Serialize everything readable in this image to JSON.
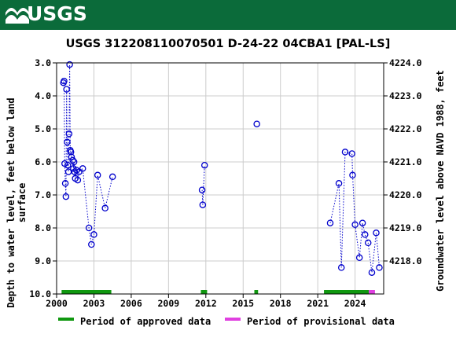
{
  "header": {
    "logo_text": "USGS",
    "banner_color": "#0b6b3a"
  },
  "chart_data": {
    "type": "scatter",
    "title": "USGS 312208110070501 D-24-22 04CBA1 [PAL-LS]",
    "ylabel_left_line1": "Depth to water level, feet below land",
    "ylabel_left_line2": "surface",
    "ylabel_right": "Groundwater level above NAVD 1988, feet",
    "xlim": [
      2000.0,
      2026.3
    ],
    "ylim_left": [
      3.0,
      10.0
    ],
    "ylim_right": [
      4224.0,
      4217.0
    ],
    "y_inverted": true,
    "x_ticks": [
      "2000",
      "2003",
      "2006",
      "2009",
      "2012",
      "2015",
      "2018",
      "2021",
      "2024"
    ],
    "x_tick_values": [
      2000,
      2003,
      2006,
      2009,
      2012,
      2015,
      2018,
      2021,
      2024
    ],
    "y_ticks_left": [
      "3.0",
      "4.0",
      "5.0",
      "6.0",
      "7.0",
      "8.0",
      "9.0",
      "10.0"
    ],
    "y_tick_values_left": [
      3,
      4,
      5,
      6,
      7,
      8,
      9,
      10
    ],
    "y_ticks_right": [
      "4224.0",
      "4223.0",
      "4222.0",
      "4221.0",
      "4220.0",
      "4219.0",
      "4218.0"
    ],
    "y_tick_values_right": [
      4224,
      4223,
      4222,
      4221,
      4220,
      4219,
      4218
    ],
    "grid": true,
    "marker_color": "#0000cc",
    "series": [
      {
        "points": [
          [
            2000.55,
            3.6
          ],
          [
            2000.6,
            3.55
          ],
          [
            2000.65,
            6.05
          ],
          [
            2000.7,
            6.65
          ],
          [
            2000.75,
            7.05
          ],
          [
            2000.8,
            3.8
          ],
          [
            2000.85,
            5.4
          ],
          [
            2000.9,
            6.1
          ],
          [
            2000.95,
            6.3
          ],
          [
            2001.0,
            5.15
          ],
          [
            2001.05,
            3.05
          ],
          [
            2001.1,
            5.65
          ],
          [
            2001.15,
            5.7
          ],
          [
            2001.2,
            5.85
          ],
          [
            2001.3,
            5.95
          ],
          [
            2001.35,
            6.2
          ],
          [
            2001.4,
            6.0
          ],
          [
            2001.45,
            6.3
          ],
          [
            2001.5,
            6.5
          ],
          [
            2001.6,
            6.25
          ],
          [
            2001.7,
            6.55
          ],
          [
            2001.8,
            6.3
          ],
          [
            2002.1,
            6.2
          ],
          [
            2002.6,
            8.0
          ],
          [
            2002.8,
            8.5
          ],
          [
            2003.0,
            8.2
          ],
          [
            2003.3,
            6.4
          ],
          [
            2003.9,
            7.4
          ],
          [
            2004.5,
            6.45
          ]
        ]
      },
      {
        "points": [
          [
            2011.7,
            6.85
          ],
          [
            2011.75,
            7.3
          ],
          [
            2011.9,
            6.1
          ]
        ]
      },
      {
        "points": [
          [
            2016.1,
            4.85
          ]
        ]
      },
      {
        "points": [
          [
            2022.0,
            7.85
          ],
          [
            2022.7,
            6.65
          ],
          [
            2022.9,
            9.2
          ],
          [
            2023.2,
            5.7
          ],
          [
            2023.75,
            5.75
          ],
          [
            2023.8,
            6.4
          ],
          [
            2024.0,
            7.9
          ],
          [
            2024.35,
            8.9
          ],
          [
            2024.6,
            7.85
          ],
          [
            2024.8,
            8.2
          ],
          [
            2025.05,
            8.45
          ],
          [
            2025.35,
            9.35
          ],
          [
            2025.7,
            8.15
          ],
          [
            2025.95,
            9.2
          ]
        ]
      }
    ],
    "approved_periods": [
      [
        2000.4,
        2004.4
      ],
      [
        2011.6,
        2012.1
      ],
      [
        2015.9,
        2016.2
      ],
      [
        2021.5,
        2025.1
      ]
    ],
    "provisional_periods": [
      [
        2025.1,
        2025.6
      ]
    ],
    "approved_color": "#109810",
    "provisional_color": "#e040e0",
    "legend": {
      "approved_label": "Period of approved data",
      "provisional_label": "Period of provisional data",
      "placement": "bottom"
    }
  }
}
